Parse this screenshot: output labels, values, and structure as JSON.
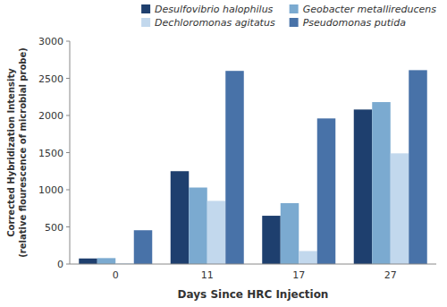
{
  "chart_data": {
    "type": "bar",
    "categories": [
      "0",
      "11",
      "17",
      "27"
    ],
    "series": [
      {
        "name": "Desulfovibrio halophilus",
        "color": "#1e3f6e",
        "values": [
          75,
          1250,
          650,
          2080
        ]
      },
      {
        "name": "Geobacter metallireducens",
        "color": "#7baad0",
        "values": [
          80,
          1030,
          820,
          2180
        ]
      },
      {
        "name": "Dechloromonas agitatus",
        "color": "#c2d8ed",
        "values": [
          10,
          850,
          175,
          1490
        ]
      },
      {
        "name": "Pseudomonas putida",
        "color": "#4872a8",
        "values": [
          455,
          2600,
          1960,
          2610
        ]
      }
    ],
    "x_label": "Days Since HRC Injection",
    "y_label": "Corrected Hybridization Intensity\n(relative flourescence of microbial probe)",
    "ylim": [
      0,
      3000
    ],
    "yticks": [
      0,
      500,
      1000,
      1500,
      2000,
      2500,
      3000
    ],
    "grid": false,
    "legend": "upper right"
  }
}
